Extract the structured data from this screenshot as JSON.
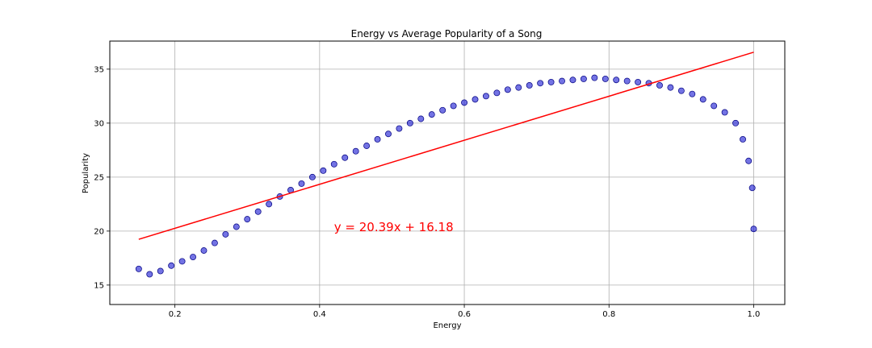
{
  "chart_data": {
    "type": "scatter",
    "title": "Energy vs Average Popularity of a Song",
    "xlabel": "Energy",
    "ylabel": "Popularity",
    "xlim": [
      0.11,
      1.043
    ],
    "ylim": [
      13.2,
      37.6
    ],
    "xticks": [
      0.2,
      0.4,
      0.6,
      0.8,
      1.0
    ],
    "xtick_labels": [
      "0.2",
      "0.4",
      "0.6",
      "0.8",
      "1.0"
    ],
    "yticks": [
      15,
      20,
      25,
      30,
      35
    ],
    "ytick_labels": [
      "15",
      "20",
      "25",
      "30",
      "35"
    ],
    "grid": true,
    "marker_color": "#0000cd",
    "marker_edge_color": "#000080",
    "series": [
      {
        "x": [
          0.15,
          0.165,
          0.18,
          0.195,
          0.21,
          0.225,
          0.24,
          0.255,
          0.27,
          0.285,
          0.3,
          0.315,
          0.33,
          0.345,
          0.36,
          0.375,
          0.39,
          0.405,
          0.42,
          0.435,
          0.45,
          0.465,
          0.48,
          0.495,
          0.51,
          0.525,
          0.54,
          0.555,
          0.57,
          0.585,
          0.6,
          0.615,
          0.63,
          0.645,
          0.66,
          0.675,
          0.69,
          0.705,
          0.72,
          0.735,
          0.75,
          0.765,
          0.78,
          0.795,
          0.81,
          0.825,
          0.84,
          0.855,
          0.87,
          0.885,
          0.9,
          0.915,
          0.93,
          0.945,
          0.96,
          0.975,
          0.985,
          0.993,
          0.998,
          1.0
        ],
        "y": [
          16.5,
          16.0,
          16.3,
          16.8,
          17.2,
          17.6,
          18.2,
          18.9,
          19.7,
          20.4,
          21.1,
          21.8,
          22.5,
          23.2,
          23.8,
          24.4,
          25.0,
          25.6,
          26.2,
          26.8,
          27.4,
          27.9,
          28.5,
          29.0,
          29.5,
          30.0,
          30.4,
          30.8,
          31.2,
          31.6,
          31.9,
          32.2,
          32.5,
          32.8,
          33.1,
          33.3,
          33.5,
          33.7,
          33.8,
          33.9,
          34.0,
          34.1,
          34.2,
          34.1,
          34.0,
          33.9,
          33.8,
          33.7,
          33.5,
          33.3,
          33.0,
          32.7,
          32.2,
          31.6,
          31.0,
          30.0,
          28.5,
          26.5,
          24.0,
          20.2
        ]
      }
    ],
    "trendline": {
      "slope": 20.39,
      "intercept": 16.18,
      "x_range": [
        0.15,
        1.0
      ],
      "color": "#ff0000"
    },
    "annotations": [
      {
        "text": "y = 20.39x + 16.18",
        "x": 0.42,
        "y": 20.0,
        "color": "#ff0000"
      }
    ]
  }
}
